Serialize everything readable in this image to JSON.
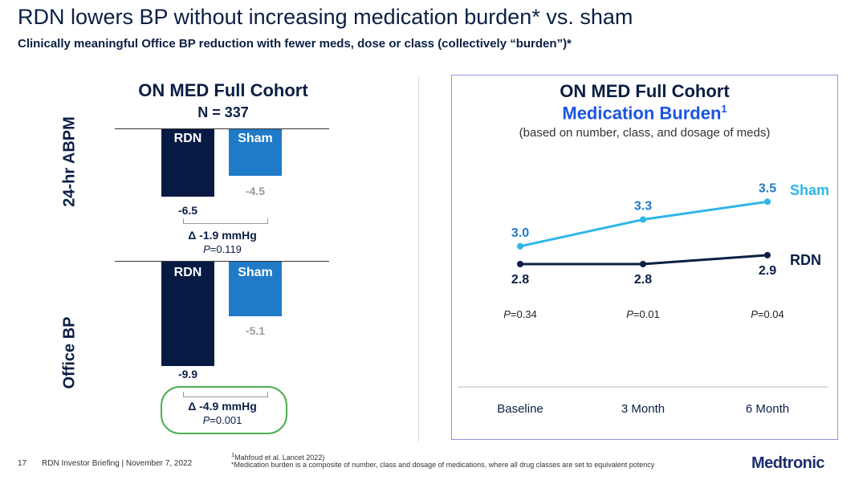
{
  "title": "RDN lowers BP without increasing medication burden* vs. sham",
  "subtitle": "Clinically meaningful Office BP reduction with fewer meds, dose or class (collectively “burden”)*",
  "left": {
    "title": "ON MED Full Cohort",
    "n": "N = 337",
    "abpm_label": "24-hr ABPM",
    "office_label": "Office BP",
    "rdn_label": "RDN",
    "sham_label": "Sham",
    "abpm": {
      "rdn": "-6.5",
      "sham": "-4.5",
      "delta": "Δ -1.9 mmHg",
      "p_prefix": "P",
      "p_value": "=0.119"
    },
    "office": {
      "rdn": "-9.9",
      "sham": "-5.1",
      "delta": "Δ -4.9 mmHg",
      "p_prefix": "P",
      "p_value": "=0.001"
    }
  },
  "right": {
    "title": "ON MED Full Cohort",
    "subtitle": "Medication Burden",
    "subtitle_sup": "1",
    "note": "(based on number, class, and dosage of meds)"
  },
  "chart_data": [
    {
      "type": "bar",
      "title": "24-hr ABPM",
      "categories": [
        "RDN",
        "Sham"
      ],
      "values": [
        -6.5,
        -4.5
      ],
      "delta": -1.9,
      "unit": "mmHg",
      "p_value": 0.119
    },
    {
      "type": "bar",
      "title": "Office BP",
      "categories": [
        "RDN",
        "Sham"
      ],
      "values": [
        -9.9,
        -5.1
      ],
      "delta": -4.9,
      "unit": "mmHg",
      "p_value": 0.001
    },
    {
      "type": "line",
      "title": "Medication Burden",
      "categories": [
        "Baseline",
        "3 Month",
        "6 Month"
      ],
      "series": [
        {
          "name": "Sham",
          "values": [
            3.0,
            3.3,
            3.5
          ],
          "color": "#2fb6e8",
          "labels": [
            "3.0",
            "3.3",
            "3.5"
          ]
        },
        {
          "name": "RDN",
          "values": [
            2.8,
            2.8,
            2.9
          ],
          "color": "#0b1f44",
          "labels": [
            "2.8",
            "2.8",
            "2.9"
          ]
        }
      ],
      "p_values": [
        "=0.34",
        "=0.01",
        "=0.04"
      ],
      "p_prefix": "P"
    }
  ],
  "footer": {
    "page": "17",
    "briefing": "RDN Investor Briefing | November 7, 2022",
    "footnote1_sup": "1",
    "footnote1": "Mahfoud et al. Lancet 2022)",
    "footnote2": "*Medication burden is a composite of number, class and dosage of medications, where all drug classes are set to equivalent potency",
    "logo": "Medtronic"
  }
}
